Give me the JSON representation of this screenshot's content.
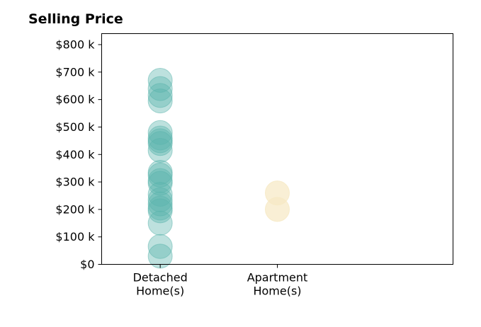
{
  "chart_data": {
    "type": "scatter",
    "title": "Selling Price",
    "categories": [
      "Detached\nHome(s)",
      "Apartment\nHome(s)"
    ],
    "ylim": [
      0,
      840000
    ],
    "yticks": [
      0,
      100000,
      200000,
      300000,
      400000,
      500000,
      600000,
      700000,
      800000
    ],
    "ytick_labels": [
      "$0",
      "$100 k",
      "$200 k",
      "$300 k",
      "$400 k",
      "$500 k",
      "$600 k",
      "$700 k",
      "$800 k"
    ],
    "grid": false,
    "series": [
      {
        "category": "Detached\nHome(s)",
        "color": "#5ab4ac",
        "values": [
          670000,
          640000,
          615000,
          595000,
          480000,
          460000,
          450000,
          440000,
          415000,
          335000,
          325000,
          305000,
          295000,
          255000,
          235000,
          220000,
          205000,
          195000,
          150000,
          65000,
          30000
        ]
      },
      {
        "category": "Apartment\nHome(s)",
        "color": "#f6e8c3",
        "values": [
          260000,
          200000
        ]
      }
    ]
  }
}
